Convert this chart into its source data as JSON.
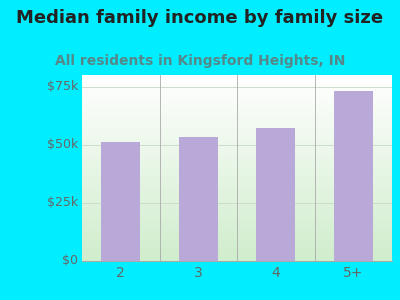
{
  "title": "Median family income by family size",
  "subtitle": "All residents in Kingsford Heights, IN",
  "categories": [
    "2",
    "3",
    "4",
    "5+"
  ],
  "values": [
    51000,
    53500,
    57000,
    73000
  ],
  "bar_color": "#b9a9d9",
  "ylim": [
    0,
    80000
  ],
  "yticks": [
    0,
    25000,
    50000,
    75000
  ],
  "ytick_labels": [
    "$0",
    "$25k",
    "$50k",
    "$75k"
  ],
  "background_outer": "#00eeff",
  "title_fontsize": 13,
  "subtitle_fontsize": 10,
  "title_color": "#222222",
  "subtitle_color": "#558888",
  "tick_color": "#666666",
  "grad_top": "#ffffff",
  "grad_bottom": "#d0edcc"
}
